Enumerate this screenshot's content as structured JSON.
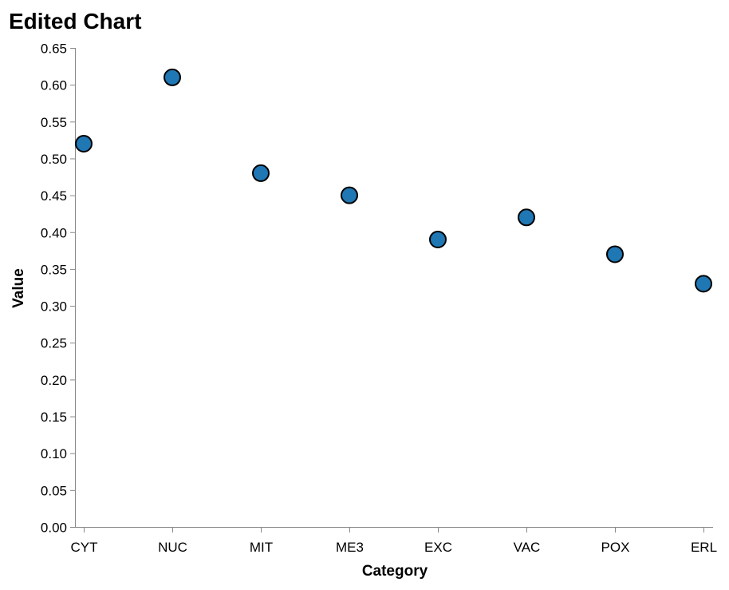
{
  "chart_data": {
    "type": "scatter",
    "title": "Edited Chart",
    "xlabel": "Category",
    "ylabel": "Value",
    "categories": [
      "CYT",
      "NUC",
      "MIT",
      "ME3",
      "EXC",
      "VAC",
      "POX",
      "ERL"
    ],
    "values": [
      0.52,
      0.61,
      0.48,
      0.45,
      0.39,
      0.42,
      0.37,
      0.33
    ],
    "ylim": [
      0,
      0.65
    ],
    "yticks": [
      "0.00",
      "0.05",
      "0.10",
      "0.15",
      "0.20",
      "0.25",
      "0.30",
      "0.35",
      "0.40",
      "0.45",
      "0.50",
      "0.55",
      "0.60",
      "0.65"
    ],
    "grid": false,
    "point_color": "#1f77b4"
  }
}
